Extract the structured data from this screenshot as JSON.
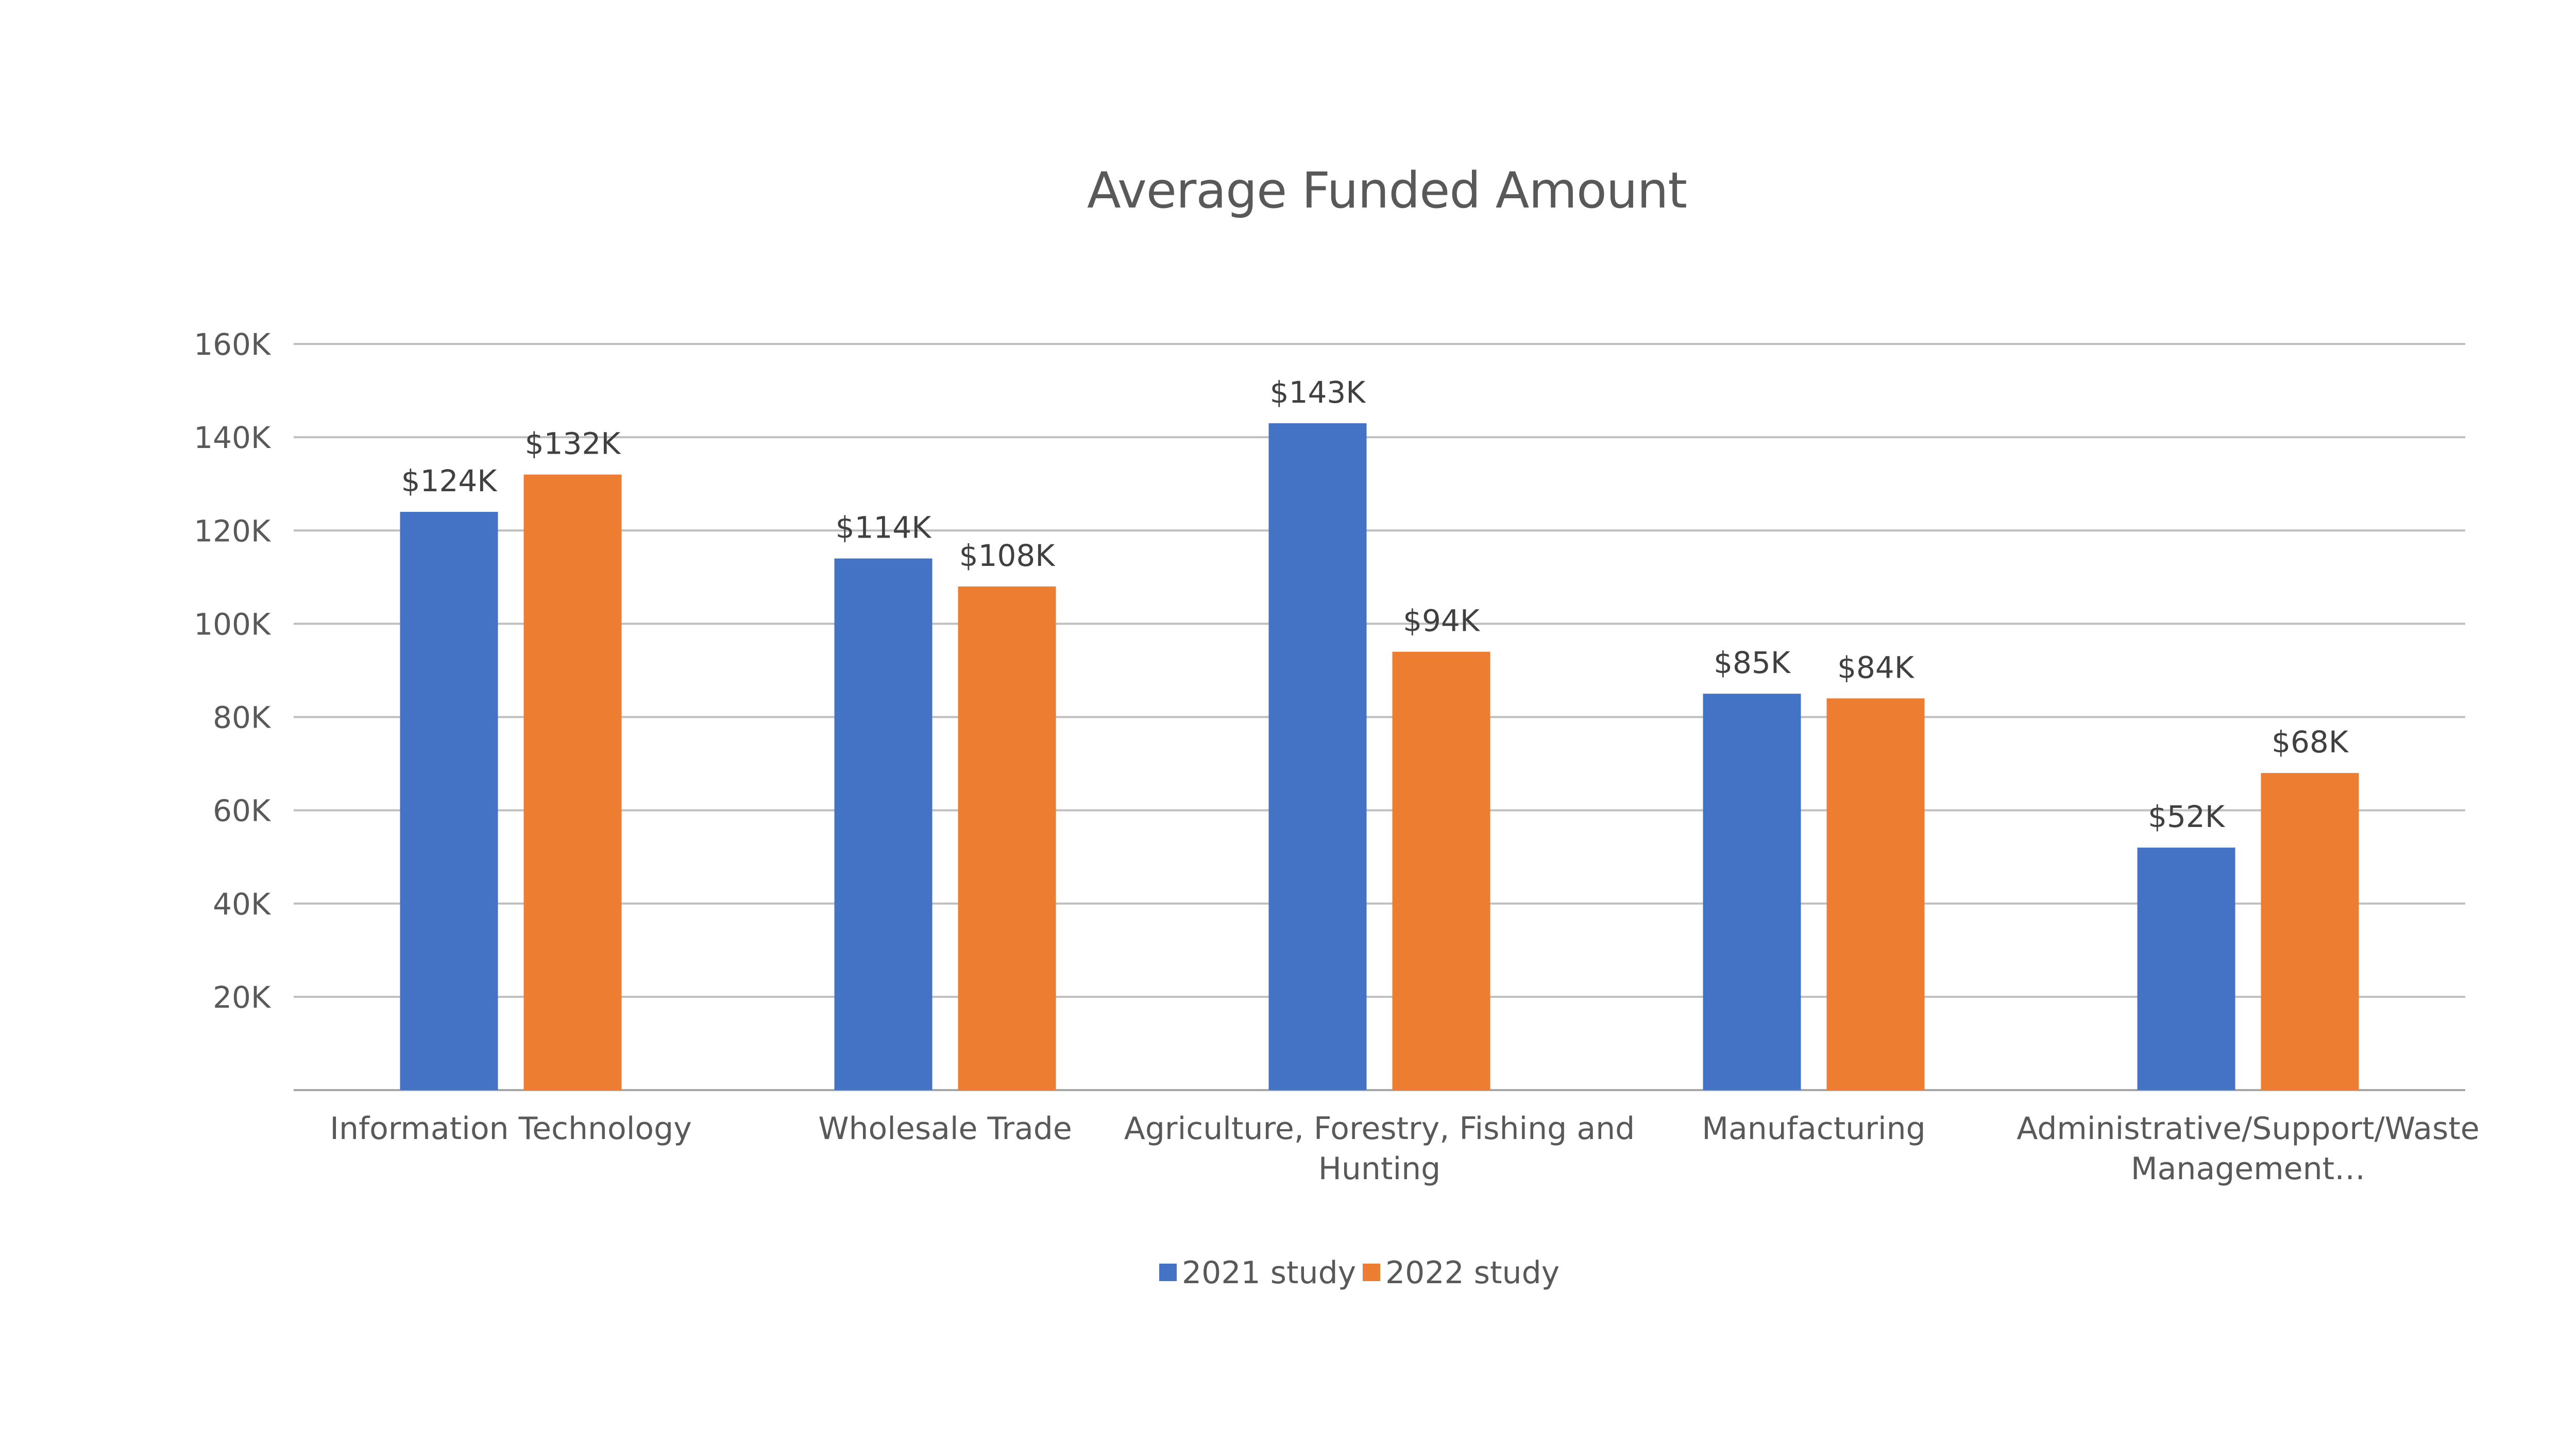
{
  "chart_data": {
    "type": "bar",
    "title": "Average Funded Amount",
    "xlabel": "",
    "ylabel": "",
    "ylim": [
      0,
      160000
    ],
    "yticks": [
      {
        "value": 20000,
        "label": "20K"
      },
      {
        "value": 40000,
        "label": "40K"
      },
      {
        "value": 60000,
        "label": "60K"
      },
      {
        "value": 80000,
        "label": "80K"
      },
      {
        "value": 100000,
        "label": "100K"
      },
      {
        "value": 120000,
        "label": "120K"
      },
      {
        "value": 140000,
        "label": "140K"
      },
      {
        "value": 160000,
        "label": "160K"
      }
    ],
    "grid": true,
    "legend_position": "bottom",
    "categories": [
      [
        "Information Technology"
      ],
      [
        "Wholesale Trade"
      ],
      [
        "Agriculture, Forestry, Fishing and",
        "Hunting"
      ],
      [
        "Manufacturing"
      ],
      [
        "Administrative/Support/Waste",
        "Management…"
      ]
    ],
    "series": [
      {
        "name": "2021 study",
        "color": "#4472C4",
        "values": [
          124000,
          114000,
          143000,
          85000,
          52000
        ],
        "labels": [
          "$124K",
          "$114K",
          "$143K",
          "$85K",
          "$52K"
        ]
      },
      {
        "name": "2022 study",
        "color": "#ED7D31",
        "values": [
          132000,
          108000,
          94000,
          84000,
          68000
        ],
        "labels": [
          "$132K",
          "$108K",
          "$94K",
          "$84K",
          "$68K"
        ]
      }
    ]
  }
}
